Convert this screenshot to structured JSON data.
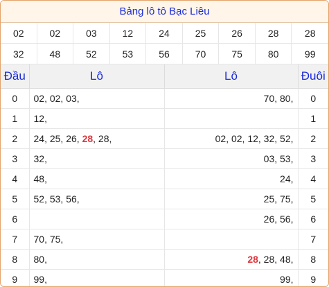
{
  "title": "Bảng lô tô Bạc Liêu",
  "numbers_row1": [
    "02",
    "02",
    "03",
    "12",
    "24",
    "25",
    "26",
    "28",
    "28"
  ],
  "numbers_row2": [
    "32",
    "48",
    "52",
    "53",
    "56",
    "70",
    "75",
    "80",
    "99"
  ],
  "highlight_color": "#e0343c",
  "headers": {
    "dau": "Đầu",
    "lo_left": "Lô",
    "lo_right": "Lô",
    "duoi": "Đuôi"
  },
  "rows": [
    {
      "dau": "0",
      "left": [
        {
          "t": "02, 02, 03,",
          "h": false
        }
      ],
      "right": [
        {
          "t": "70, 80,",
          "h": false
        }
      ],
      "duoi": "0"
    },
    {
      "dau": "1",
      "left": [
        {
          "t": "12,",
          "h": false
        }
      ],
      "right": [],
      "duoi": "1"
    },
    {
      "dau": "2",
      "left": [
        {
          "t": "24, 25, 26, ",
          "h": false
        },
        {
          "t": "28",
          "h": true
        },
        {
          "t": ", 28,",
          "h": false
        }
      ],
      "right": [
        {
          "t": "02, 02, 12, 32, 52,",
          "h": false
        }
      ],
      "duoi": "2"
    },
    {
      "dau": "3",
      "left": [
        {
          "t": "32,",
          "h": false
        }
      ],
      "right": [
        {
          "t": "03, 53,",
          "h": false
        }
      ],
      "duoi": "3"
    },
    {
      "dau": "4",
      "left": [
        {
          "t": "48,",
          "h": false
        }
      ],
      "right": [
        {
          "t": "24,",
          "h": false
        }
      ],
      "duoi": "4"
    },
    {
      "dau": "5",
      "left": [
        {
          "t": "52, 53, 56,",
          "h": false
        }
      ],
      "right": [
        {
          "t": "25, 75,",
          "h": false
        }
      ],
      "duoi": "5"
    },
    {
      "dau": "6",
      "left": [],
      "right": [
        {
          "t": "26, 56,",
          "h": false
        }
      ],
      "duoi": "6"
    },
    {
      "dau": "7",
      "left": [
        {
          "t": "70, 75,",
          "h": false
        }
      ],
      "right": [],
      "duoi": "7"
    },
    {
      "dau": "8",
      "left": [
        {
          "t": "80,",
          "h": false
        }
      ],
      "right": [
        {
          "t": "28",
          "h": true
        },
        {
          "t": ", 28, 48,",
          "h": false
        }
      ],
      "duoi": "8"
    },
    {
      "dau": "9",
      "left": [
        {
          "t": "99,",
          "h": false
        }
      ],
      "right": [
        {
          "t": "99,",
          "h": false
        }
      ],
      "duoi": "9"
    }
  ]
}
